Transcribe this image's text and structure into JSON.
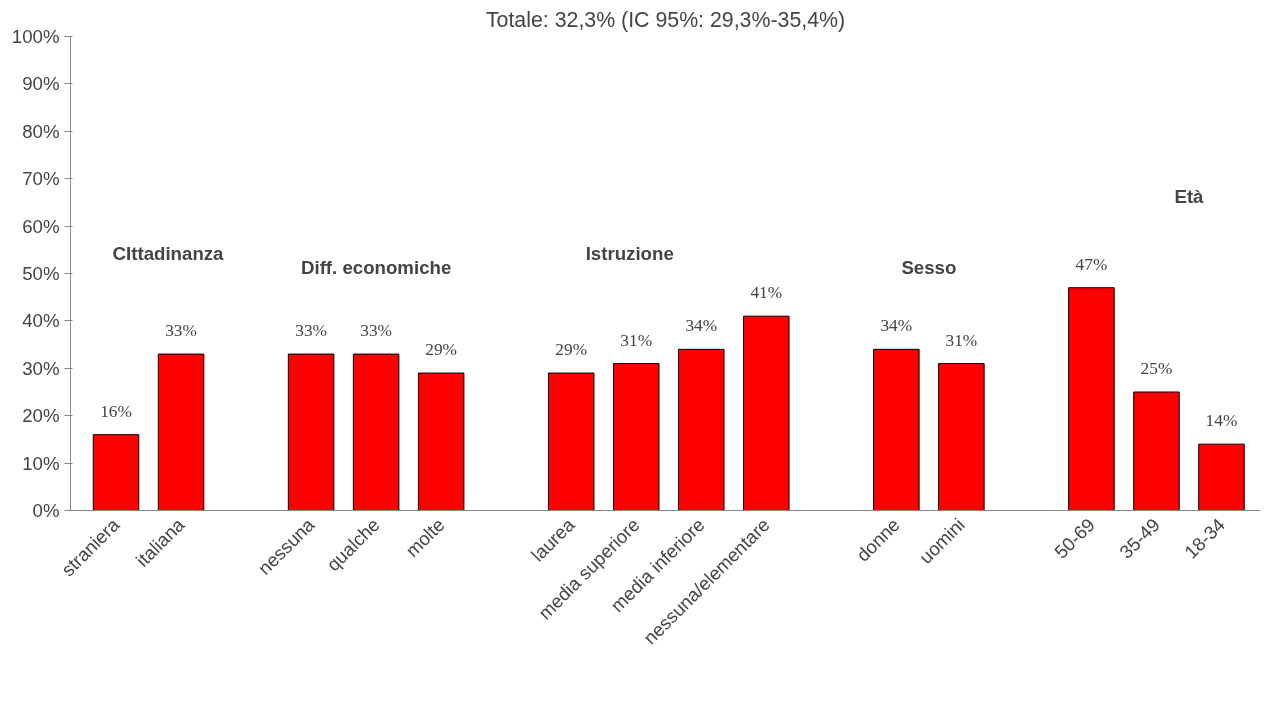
{
  "chart_data": {
    "type": "bar",
    "title": "Totale: 32,3% (IC 95%: 29,3%-35,4%)",
    "categories": [
      "straniera",
      "italiana",
      null,
      "nessuna",
      "qualche",
      "molte",
      null,
      "laurea",
      "media superiore",
      "media inferiore",
      "nessuna/elementare",
      null,
      "donne",
      "uomini",
      null,
      "50-69",
      "35-49",
      "18-34"
    ],
    "values": [
      16,
      33,
      null,
      33,
      33,
      29,
      null,
      29,
      31,
      34,
      41,
      null,
      34,
      31,
      null,
      47,
      25,
      14
    ],
    "value_labels": [
      "16%",
      "33%",
      null,
      "33%",
      "33%",
      "29%",
      null,
      "29%",
      "31%",
      "34%",
      "41%",
      null,
      "34%",
      "31%",
      null,
      "47%",
      "25%",
      "14%"
    ],
    "color": "#ff0000",
    "ylim": [
      0,
      100
    ],
    "yticks": [
      {
        "value": 0,
        "label": "0%"
      },
      {
        "value": 10,
        "label": "10%"
      },
      {
        "value": 20,
        "label": "20%"
      },
      {
        "value": 30,
        "label": "30%"
      },
      {
        "value": 40,
        "label": "40%"
      },
      {
        "value": 50,
        "label": "50%"
      },
      {
        "value": 60,
        "label": "60%"
      },
      {
        "value": 70,
        "label": "70%"
      },
      {
        "value": 80,
        "label": "80%"
      },
      {
        "value": 90,
        "label": "90%"
      },
      {
        "value": 100,
        "label": "100%"
      }
    ],
    "grid": false,
    "annotations": [
      "CIttadinanza",
      "Diff. economiche",
      "Istruzione",
      "Sesso",
      "Età"
    ]
  }
}
